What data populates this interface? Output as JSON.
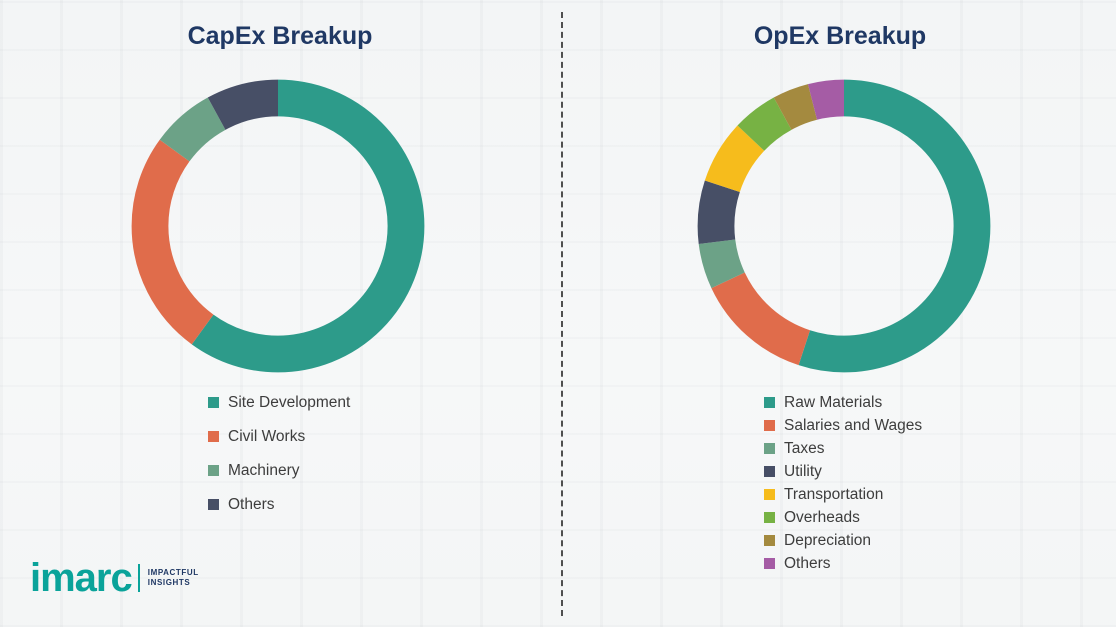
{
  "chart_data": [
    {
      "type": "donut",
      "title": "CapEx Breakup",
      "categories": [
        "Site Development",
        "Civil Works",
        "Machinery",
        "Others"
      ],
      "values": [
        60,
        25,
        7,
        8
      ],
      "colors": [
        "#2d9b8a",
        "#e06c4b",
        "#6ca287",
        "#474f66"
      ],
      "legend_position": "bottom"
    },
    {
      "type": "donut",
      "title": "OpEx Breakup",
      "categories": [
        "Raw Materials",
        "Salaries and Wages",
        "Taxes",
        "Utility",
        "Transportation",
        "Overheads",
        "Depreciation",
        "Others"
      ],
      "values": [
        55,
        13,
        5,
        7,
        7,
        5,
        4,
        4
      ],
      "colors": [
        "#2d9b8a",
        "#e06c4b",
        "#6ca287",
        "#474f66",
        "#f6bc1c",
        "#77b244",
        "#a48a3f",
        "#a55ca5"
      ],
      "legend_position": "bottom"
    }
  ],
  "logo": {
    "brand": "imarc",
    "tagline_line1": "IMPACTFUL",
    "tagline_line2": "INSIGHTS",
    "color": "#0aa39a"
  }
}
